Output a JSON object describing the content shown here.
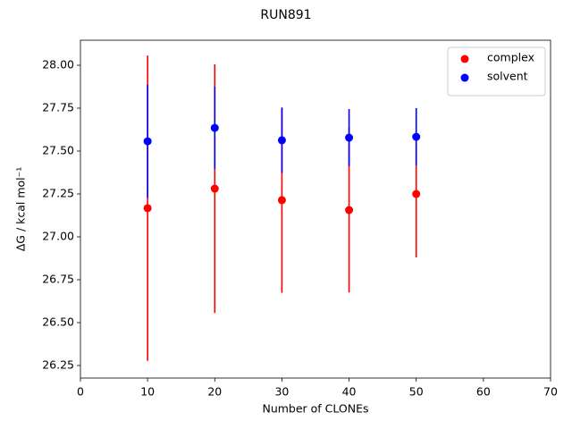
{
  "chart_data": {
    "type": "errorbar-scatter",
    "title": "RUN891",
    "x_label": "Number of CLONEs",
    "y_label": "ΔG / kcal mol⁻¹",
    "x": [
      10,
      20,
      30,
      40,
      50
    ],
    "series": [
      {
        "name": "complex",
        "color": "#ff0000",
        "values": [
          27.167,
          27.281,
          27.214,
          27.156,
          27.25
        ],
        "errors": [
          0.89,
          0.725,
          0.54,
          0.48,
          0.37
        ]
      },
      {
        "name": "solvent",
        "color": "#0000ff",
        "values": [
          27.557,
          27.635,
          27.563,
          27.578,
          27.583
        ],
        "errors": [
          0.33,
          0.24,
          0.19,
          0.167,
          0.167
        ]
      }
    ],
    "xlim": [
      0,
      70
    ],
    "xticks": [
      0,
      10,
      20,
      30,
      40,
      50,
      60,
      70
    ],
    "ylim": [
      26.177,
      28.146
    ],
    "yticks": [
      26.25,
      {
        "value": 26.5,
        "label": "26.50"
      },
      26.75,
      {
        "value": 27,
        "label": "27.00"
      },
      27.25,
      {
        "value": 27.5,
        "label": "27.50"
      },
      27.75,
      {
        "value": 28,
        "label": "28.00"
      }
    ],
    "legend": "upper right"
  }
}
